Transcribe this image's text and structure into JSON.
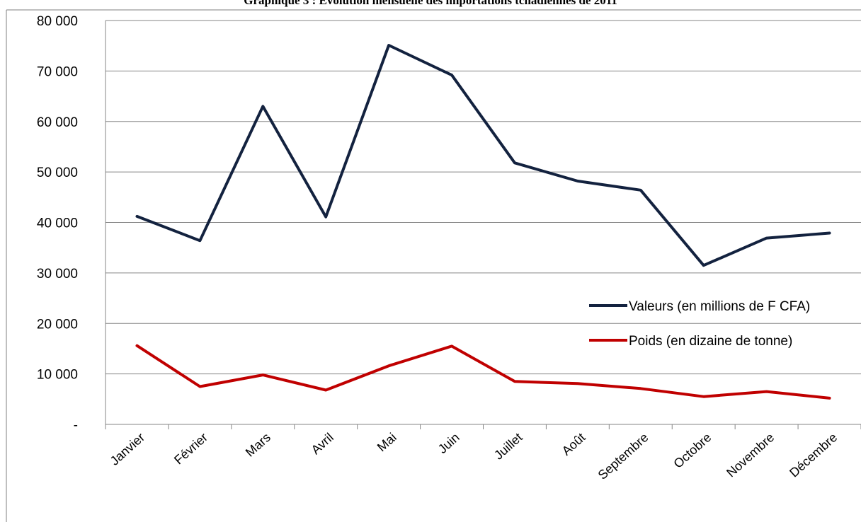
{
  "chart_data": {
    "type": "line",
    "title": "Graphique 3 : Evolution mensuelle des importations tchadiennes de 2011",
    "xlabel": "",
    "ylabel": "",
    "categories": [
      "Janvier",
      "Février",
      "Mars",
      "Avril",
      "Mai",
      "Juin",
      "Juillet",
      "Août",
      "Septembre",
      "Octobre",
      "Novembre",
      "Décembre"
    ],
    "ylim": [
      0,
      80000
    ],
    "yticks": [
      0,
      10000,
      20000,
      30000,
      40000,
      50000,
      60000,
      70000,
      80000
    ],
    "ytick_labels": [
      "-",
      "10 000",
      "20 000",
      "30 000",
      "40 000",
      "50 000",
      "60 000",
      "70 000",
      "80 000"
    ],
    "grid": "horizontal",
    "legend": "right",
    "series": [
      {
        "name": "Valeurs (en millions de F CFA)",
        "color": "#13223f",
        "values": [
          41200,
          36400,
          63000,
          41100,
          75100,
          69200,
          51800,
          48200,
          46400,
          31500,
          36900,
          37900
        ]
      },
      {
        "name": "Poids (en dizaine de tonne)",
        "color": "#c00000",
        "values": [
          15600,
          7500,
          9800,
          6800,
          11600,
          15500,
          8500,
          8100,
          7100,
          5500,
          6500,
          5200
        ]
      }
    ]
  }
}
